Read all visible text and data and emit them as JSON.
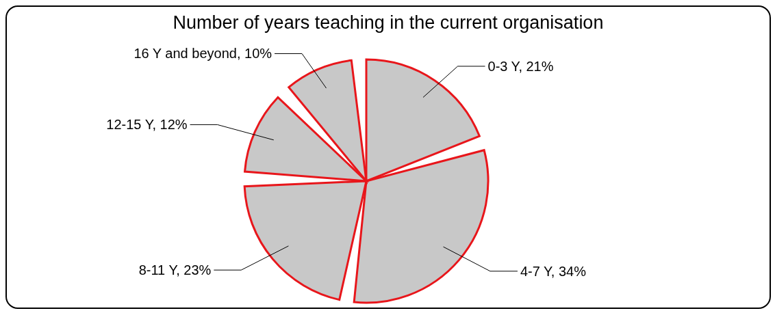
{
  "chart_data": {
    "type": "pie",
    "title": "Number of years teaching in the current organisation",
    "categories": [
      "0-3 Y",
      "4-7 Y",
      "8-11 Y",
      "12-15 Y",
      "16 Y and beyond"
    ],
    "values": [
      21,
      34,
      23,
      12,
      10
    ],
    "colors": [
      "#c8c8c8",
      "#c8c8c8",
      "#c8c8c8",
      "#c8c8c8",
      "#c8c8c8"
    ],
    "value_labels": [
      "21%",
      "34%",
      "23%",
      "12%",
      "10%"
    ],
    "legend": false
  }
}
